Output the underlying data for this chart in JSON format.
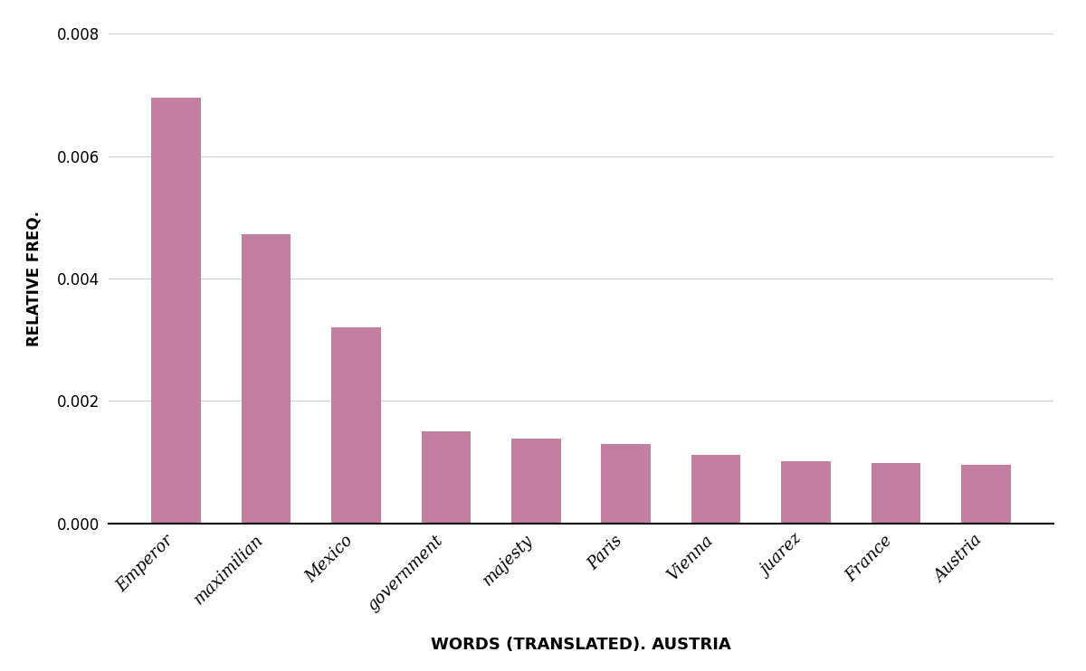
{
  "categories": [
    "Emperor",
    "maximilian",
    "Mexico",
    "government",
    "majesty",
    "Paris",
    "Vienna",
    "juarez",
    "France",
    "Austria"
  ],
  "values": [
    0.00695,
    0.00472,
    0.0032,
    0.0015,
    0.00138,
    0.0013,
    0.00112,
    0.00101,
    0.00098,
    0.00096
  ],
  "bar_color": "#c27fa0",
  "xlabel": "WORDS (TRANSLATED). AUSTRIA",
  "ylabel": "RELATIVE FREQ.",
  "ylim": [
    0,
    0.008
  ],
  "yticks": [
    0.0,
    0.002,
    0.004,
    0.006,
    0.008
  ],
  "background_color": "#ffffff",
  "xlabel_fontsize": 13,
  "ylabel_fontsize": 12,
  "tick_fontsize": 12,
  "xtick_fontsize": 13,
  "bar_width": 0.55
}
